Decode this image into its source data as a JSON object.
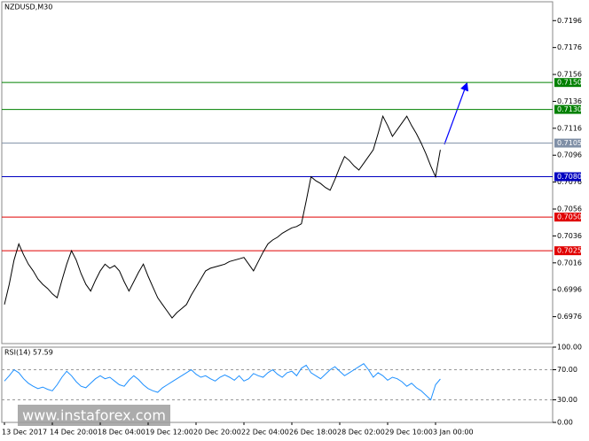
{
  "chart_data": {
    "type": "line",
    "title": "NZDUSD,M30",
    "categories": [
      "13 Dec 2017",
      null,
      null,
      null,
      null,
      null,
      null,
      null,
      null,
      null,
      "14 Dec 20:00",
      null,
      null,
      null,
      null,
      null,
      null,
      null,
      null,
      null,
      "18 Dec 04:00",
      null,
      null,
      null,
      null,
      null,
      null,
      null,
      null,
      null,
      "19 Dec 12:00",
      null,
      null,
      null,
      null,
      null,
      null,
      null,
      null,
      null,
      "20 Dec 20:00",
      null,
      null,
      null,
      null,
      null,
      null,
      null,
      null,
      null,
      "22 Dec 04:00",
      null,
      null,
      null,
      null,
      null,
      null,
      null,
      null,
      null,
      "26 Dec 18:00",
      null,
      null,
      null,
      null,
      null,
      null,
      null,
      null,
      null,
      "28 Dec 02:00",
      null,
      null,
      null,
      null,
      null,
      null,
      null,
      null,
      null,
      "29 Dec 10:00",
      null,
      null,
      null,
      null,
      null,
      null,
      null,
      null,
      null,
      "3 Jan 00:00",
      null
    ],
    "series": [
      {
        "name": "NZDUSD",
        "color": "#000000",
        "values": [
          0.6985,
          0.7,
          0.7018,
          0.703,
          0.7022,
          0.7015,
          0.701,
          0.7004,
          0.7,
          0.6997,
          0.6993,
          0.699,
          0.7003,
          0.7015,
          0.7025,
          0.7018,
          0.7008,
          0.7,
          0.6995,
          0.7003,
          0.701,
          0.7015,
          0.7012,
          0.7014,
          0.701,
          0.7002,
          0.6995,
          0.7002,
          0.7009,
          0.7015,
          0.7006,
          0.6998,
          0.699,
          0.6985,
          0.698,
          0.6975,
          0.6979,
          0.6982,
          0.6985,
          0.6992,
          0.6998,
          0.7004,
          0.701,
          0.7012,
          0.7013,
          0.7014,
          0.7015,
          0.7017,
          0.7018,
          0.7019,
          0.702,
          0.7015,
          0.701,
          0.7017,
          0.7024,
          0.703,
          0.7033,
          0.7035,
          0.7038,
          0.704,
          0.7042,
          0.7043,
          0.7045,
          0.7062,
          0.708,
          0.7077,
          0.7075,
          0.7072,
          0.707,
          0.7078,
          0.7087,
          0.7095,
          0.7092,
          0.7088,
          0.7085,
          0.709,
          0.7095,
          0.71,
          0.7112,
          0.7125,
          0.7118,
          0.711,
          0.7115,
          0.712,
          0.7125,
          0.7118,
          0.7112,
          0.7105,
          0.7097,
          0.7088,
          0.708,
          0.71
        ]
      }
    ],
    "ylim": [
      0.6956,
      0.721
    ],
    "yticks": [
      0.7196,
      0.7176,
      0.7156,
      0.7136,
      0.7116,
      0.7096,
      0.7076,
      0.7056,
      0.7036,
      0.7016,
      0.6996,
      0.6976
    ],
    "levels": [
      {
        "value": 0.715,
        "label": "0.7150",
        "color": "#008000"
      },
      {
        "value": 0.713,
        "label": "0.7130",
        "color": "#008000"
      },
      {
        "value": 0.7105,
        "label": "0.7105",
        "color": "#7f8fa6"
      },
      {
        "value": 0.708,
        "label": "0.7080",
        "color": "#0000c0"
      },
      {
        "value": 0.705,
        "label": "0.7050",
        "color": "#e00000"
      },
      {
        "value": 0.7025,
        "label": "0.7025",
        "color": "#e00000"
      }
    ],
    "rsi": {
      "title": "RSI(14) 57.59",
      "color": "#1e90ff",
      "ylim": [
        0,
        100
      ],
      "yticks": [
        {
          "value": 100,
          "label": "100.00"
        },
        {
          "value": 70,
          "label": "70.00"
        },
        {
          "value": 30,
          "label": "30.00"
        },
        {
          "value": 0,
          "label": "0.00"
        }
      ],
      "values": [
        55,
        62,
        70,
        66,
        58,
        52,
        48,
        45,
        47,
        44,
        42,
        50,
        60,
        68,
        62,
        54,
        48,
        46,
        52,
        58,
        62,
        58,
        60,
        55,
        50,
        48,
        56,
        62,
        57,
        50,
        45,
        42,
        40,
        46,
        50,
        54,
        58,
        62,
        66,
        70,
        64,
        60,
        62,
        58,
        55,
        60,
        63,
        60,
        56,
        62,
        55,
        58,
        65,
        62,
        60,
        66,
        70,
        64,
        60,
        66,
        68,
        62,
        72,
        76,
        66,
        62,
        58,
        64,
        70,
        74,
        68,
        62,
        66,
        70,
        74,
        78,
        70,
        60,
        66,
        62,
        56,
        60,
        58,
        54,
        48,
        52,
        46,
        42,
        36,
        30,
        50,
        57.59
      ]
    },
    "watermark": "www.instaforex.com"
  }
}
